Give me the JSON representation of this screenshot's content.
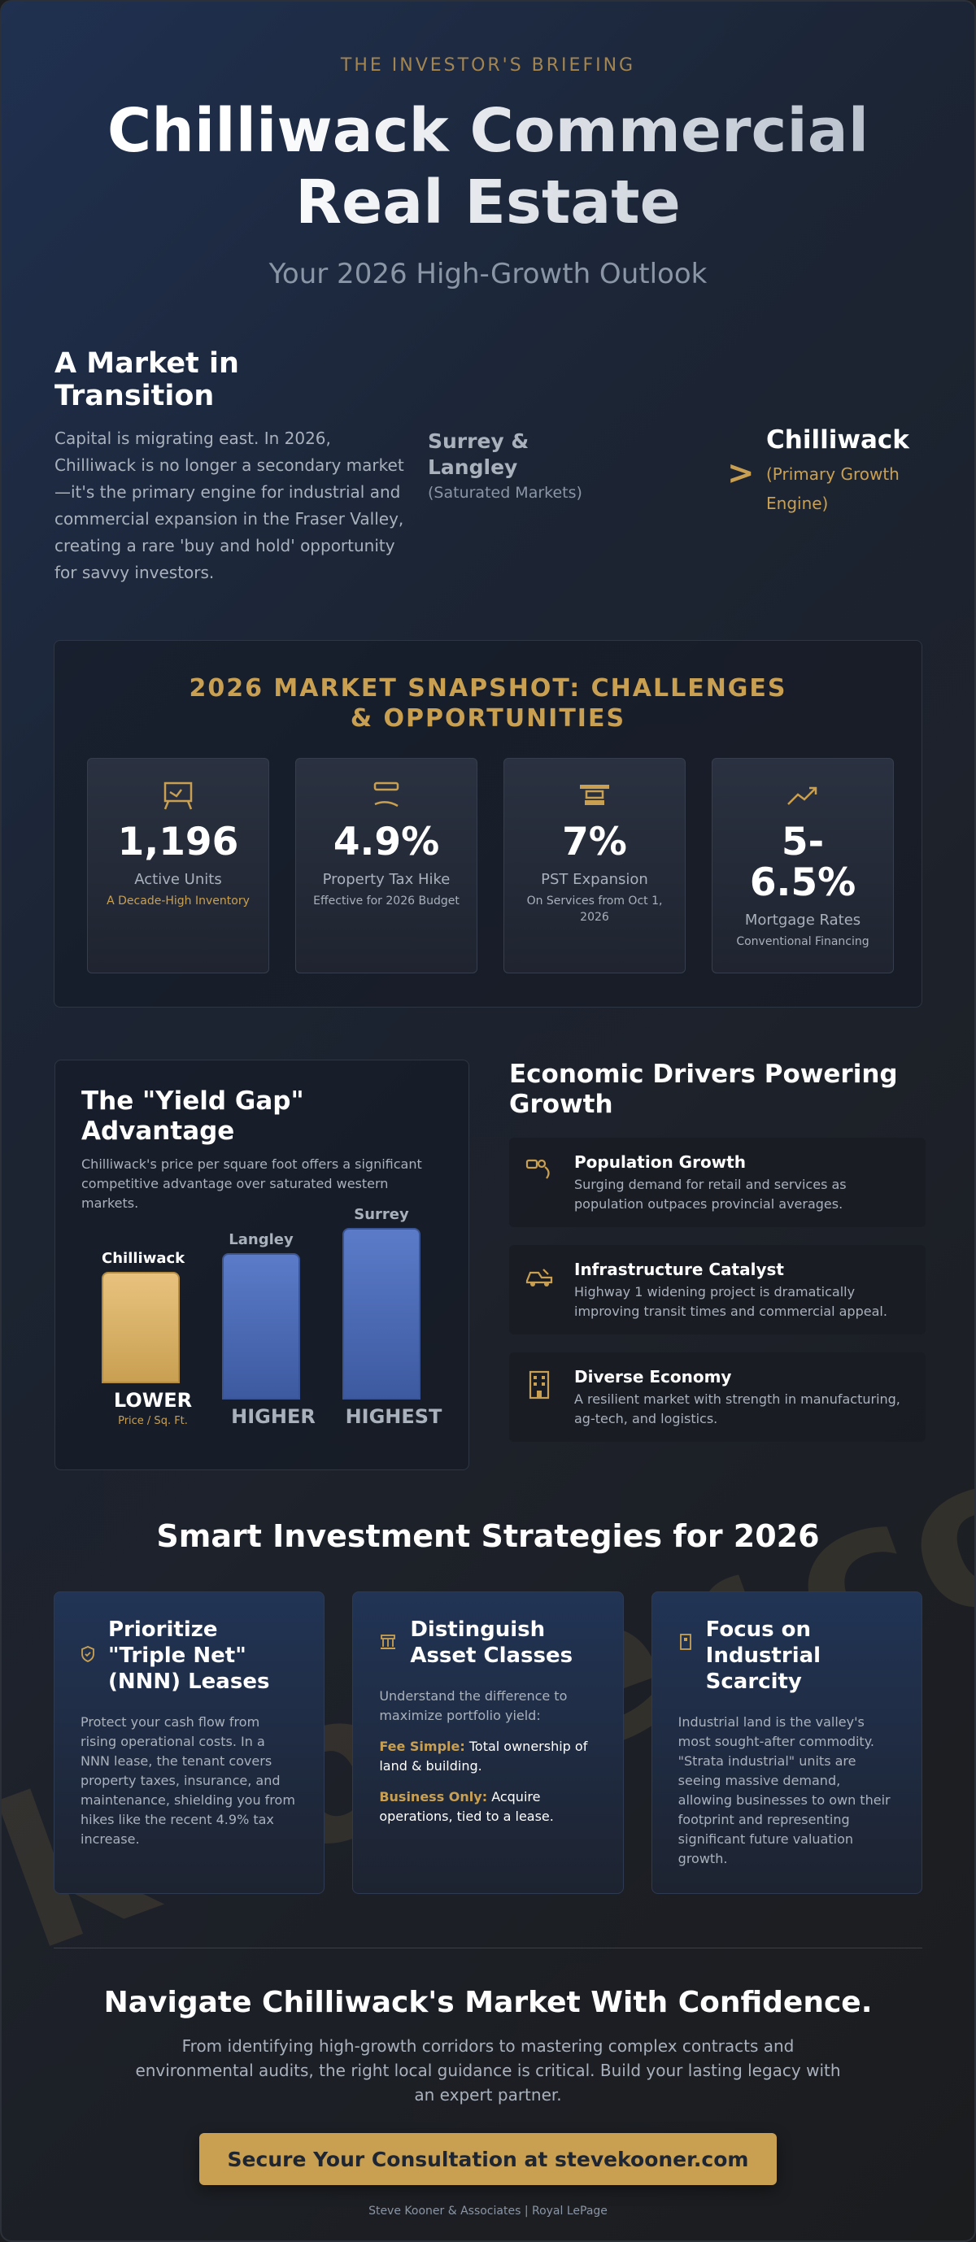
{
  "header": {
    "kicker": "THE INVESTOR'S BRIEFING",
    "title": "Chilliwack Commercial Real Estate",
    "subtitle": "Your 2026 High-Growth Outlook"
  },
  "transition": {
    "heading": "A Market in Transition",
    "body": "Capital is migrating east. In 2026, Chilliwack is no longer a secondary market—it's the primary engine for industrial and commercial expansion in the Fraser Valley, creating a rare 'buy and hold' opportunity for savvy investors.",
    "from_name": "Surrey & Langley",
    "from_desc": "(Saturated Markets)",
    "arrow": ">",
    "to_name": "Chilliwack",
    "to_desc": "(Primary Growth Engine)"
  },
  "snapshot": {
    "title": "2026 MARKET SNAPSHOT: CHALLENGES & OPPORTUNITIES",
    "cards": [
      {
        "icon": "sign-icon",
        "value": "1,196",
        "label": "Active Units",
        "sub": "A Decade-High Inventory"
      },
      {
        "icon": "tax-document-icon",
        "value": "4.9%",
        "label": "Property Tax Hike",
        "sub": "Effective for 2026 Budget"
      },
      {
        "icon": "cash-register-icon",
        "value": "7%",
        "label": "PST Expansion",
        "sub": "On Services from Oct 1, 2026"
      },
      {
        "icon": "trend-up-icon",
        "value": "5-6.5%",
        "label": "Mortgage Rates",
        "sub": "Conventional Financing"
      }
    ]
  },
  "yield": {
    "title": "The \"Yield Gap\" Advantage",
    "desc": "Chilliwack's price per square foot offers a significant competitive advantage over saturated western markets.",
    "bars": [
      {
        "name": "Chilliwack",
        "level": "LOWER",
        "unit": "Price / Sq. Ft.",
        "relative": 0.45,
        "color": "#c9a052"
      },
      {
        "name": "Langley",
        "level": "HIGHER",
        "relative": 0.75,
        "color": "#4a6ab6"
      },
      {
        "name": "Surrey",
        "level": "HIGHEST",
        "relative": 0.88,
        "color": "#4a6ab6"
      }
    ]
  },
  "drivers": {
    "title": "Economic Drivers Powering Growth",
    "items": [
      {
        "icon": "population-icon",
        "name": "Population Growth",
        "desc": "Surging demand for retail and services as population outpaces provincial averages."
      },
      {
        "icon": "truck-icon",
        "name": "Infrastructure Catalyst",
        "desc": "Highway 1 widening project is dramatically improving transit times and commercial appeal."
      },
      {
        "icon": "building-icon",
        "name": "Diverse Economy",
        "desc": "A resilient market with strength in manufacturing, ag-tech, and logistics."
      }
    ]
  },
  "strategies": {
    "title": "Smart Investment Strategies for 2026",
    "cards": [
      {
        "icon": "shield-icon",
        "name": "Prioritize \"Triple Net\" (NNN) Leases",
        "body": "Protect your cash flow from rising operational costs. In a NNN lease, the tenant covers property taxes, insurance, and maintenance, shielding you from hikes like the recent 4.9% tax increase."
      },
      {
        "icon": "building-columns-icon",
        "name": "Distinguish Asset Classes",
        "body": "Understand the difference to maximize portfolio yield:",
        "line1_key": "Fee Simple:",
        "line1_text": "Total ownership of land & building.",
        "line2_key": "Business Only:",
        "line2_text": "Acquire operations, tied to a lease."
      },
      {
        "icon": "warehouse-icon",
        "name": "Focus on Industrial Scarcity",
        "body": "Industrial land is the valley's most sought-after commodity. \"Strata industrial\" units are seeing massive demand, allowing businesses to own their footprint and representing significant future valuation growth."
      }
    ]
  },
  "footer": {
    "cta_title": "Navigate Chilliwack's Market With Confidence.",
    "cta_body": "From identifying high-growth corridors to mastering complex contracts and environmental audits, the right local guidance is critical. Build your lasting legacy with an expert partner.",
    "button": "Secure Your Consultation at stevekooner.com",
    "credit": "Steve Kooner & Associates | Royal LePage",
    "watermark": "kooner.com"
  },
  "colors": {
    "accent": "#c9a052",
    "bar_blue": "#4a6ab6",
    "background": "#1c2535"
  }
}
